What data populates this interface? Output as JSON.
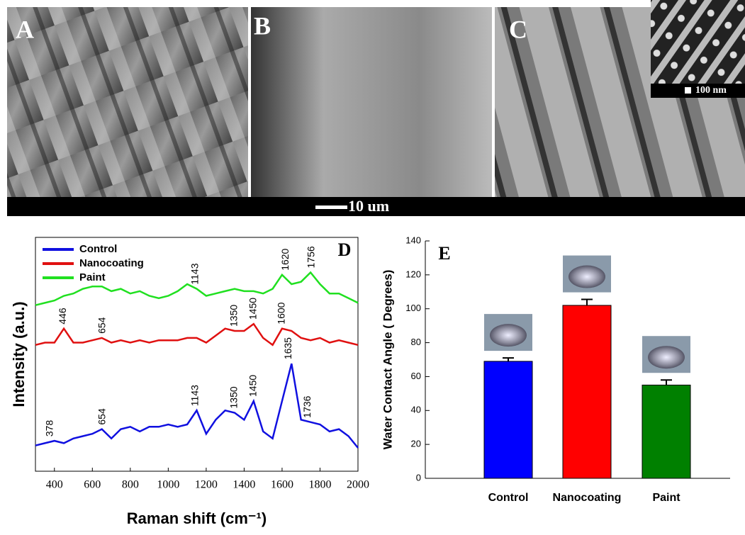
{
  "panels": {
    "labels": [
      "A",
      "B",
      "C"
    ],
    "inset_scale": "100 nm",
    "scale_bar": "10 um"
  },
  "chart_data": [
    {
      "type": "line",
      "panel_label": "D",
      "x_label": "Raman shift  (cm⁻¹)",
      "y_label": "Intensity (a.u.)",
      "xlim": [
        300,
        2000
      ],
      "xticks": [
        400,
        600,
        800,
        1000,
        1200,
        1400,
        1600,
        1800,
        2000
      ],
      "ylim": [
        0,
        100
      ],
      "x": [
        300,
        350,
        400,
        450,
        500,
        550,
        600,
        650,
        700,
        750,
        800,
        850,
        900,
        950,
        1000,
        1050,
        1100,
        1150,
        1200,
        1250,
        1300,
        1350,
        1400,
        1450,
        1500,
        1550,
        1600,
        1650,
        1700,
        1750,
        1800,
        1850,
        1900,
        1950,
        2000
      ],
      "series": [
        {
          "name": "Control",
          "color": "#1010e0",
          "values": [
            11,
            12,
            13,
            12,
            14,
            15,
            16,
            18,
            14,
            18,
            19,
            17,
            19,
            19,
            20,
            19,
            20,
            26,
            16,
            22,
            26,
            25,
            22,
            30,
            17,
            14,
            30,
            46,
            22,
            21,
            20,
            17,
            18,
            15,
            10
          ],
          "peaks": [
            378,
            654,
            1143,
            1350,
            1450,
            1635,
            1736
          ],
          "peak_labels": [
            "378",
            "654",
            "1143",
            "1350",
            "1450",
            "1635",
            "1736"
          ]
        },
        {
          "name": "Nanocoating",
          "color": "#e01010",
          "values": [
            54,
            55,
            55,
            61,
            55,
            55,
            56,
            57,
            55,
            56,
            55,
            56,
            55,
            56,
            56,
            56,
            57,
            57,
            55,
            58,
            61,
            60,
            60,
            63,
            57,
            54,
            61,
            60,
            57,
            56,
            57,
            55,
            56,
            55,
            54
          ],
          "peaks": [
            446,
            654,
            1350,
            1450,
            1600
          ],
          "peak_labels": [
            "446",
            "654",
            "1350",
            "1450",
            "1600"
          ]
        },
        {
          "name": "Paint",
          "color": "#20e020",
          "values": [
            71,
            72,
            73,
            75,
            76,
            78,
            79,
            79,
            77,
            78,
            76,
            77,
            75,
            74,
            75,
            77,
            80,
            78,
            75,
            76,
            77,
            78,
            77,
            77,
            76,
            78,
            84,
            80,
            81,
            85,
            80,
            76,
            76,
            74,
            72
          ],
          "peaks": [
            1143,
            1620,
            1756
          ],
          "peak_labels": [
            "1143",
            "1620",
            "1756"
          ]
        }
      ],
      "legend": "upper left"
    },
    {
      "type": "bar",
      "panel_label": "E",
      "y_label": "Water Contact Angle ( Degrees)",
      "categories": [
        "Control",
        "Nanocoating",
        "Paint"
      ],
      "values": [
        69,
        102,
        55
      ],
      "errors": [
        2,
        3.5,
        3
      ],
      "colors": [
        "#0000ff",
        "#ff0000",
        "#008000"
      ],
      "ylim": [
        0,
        140
      ],
      "yticks": [
        0,
        20,
        40,
        60,
        80,
        100,
        120,
        140
      ]
    }
  ]
}
